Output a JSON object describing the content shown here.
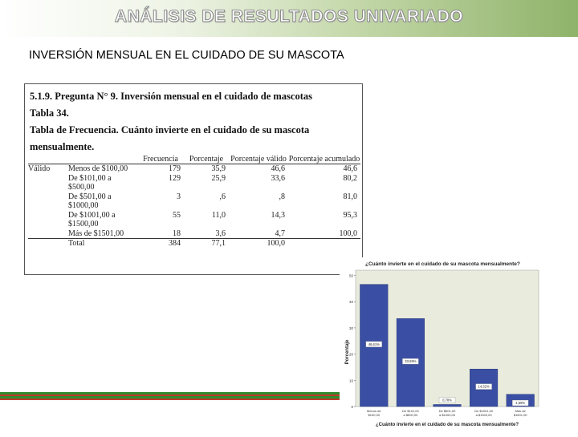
{
  "header": {
    "title": "ANÁLISIS DE RESULTADOS  UNIVARIADO"
  },
  "subtitle": "INVERSIÓN MENSUAL EN EL CUIDADO DE SU MASCOTA",
  "document": {
    "line1": "5.1.9.   Pregunta N° 9. Inversión mensual en el cuidado de mascotas",
    "line2": "Tabla 34.",
    "line3": "Tabla de Frecuencia. Cuánto invierte en el cuidado de su mascota",
    "line4": "mensualmente.",
    "table": {
      "headers": [
        "",
        "",
        "Frecuencia",
        "Porcentaje",
        "Porcentaje válido",
        "Porcentaje acumulado"
      ],
      "group": "Válido",
      "rows": [
        {
          "label": "Menos de $100,00",
          "freq": "179",
          "pct": "35,9",
          "valid": "46,6",
          "cum": "46,6"
        },
        {
          "label": "De $101,00 a $500,00",
          "freq": "129",
          "pct": "25,9",
          "valid": "33,6",
          "cum": "80,2"
        },
        {
          "label": "De $501,00 a $1000,00",
          "freq": "3",
          "pct": ",6",
          "valid": ",8",
          "cum": "81,0"
        },
        {
          "label": "De $1001,00 a $1500,00",
          "freq": "55",
          "pct": "11,0",
          "valid": "14,3",
          "cum": "95,3"
        },
        {
          "label": "Más de $1501,00",
          "freq": "18",
          "pct": "3,6",
          "valid": "4,7",
          "cum": "100,0"
        },
        {
          "label": "Total",
          "freq": "384",
          "pct": "77,1",
          "valid": "100,0",
          "cum": ""
        }
      ]
    }
  },
  "chart_data": {
    "type": "bar",
    "title": "¿Cuánto invierte en el cuidado de su mascota mensualmente?",
    "xlabel": "¿Cuánto invierte en el cuidado de su mascota mensualmente?",
    "ylabel": "Porcentaje",
    "categories": [
      "Menos de $100,00",
      "De $101,00 a $500,00",
      "De $501,00 a $1000,00",
      "De $1001,00 a $1500,00",
      "Más de $1501,00"
    ],
    "values": [
      46.61,
      33.59,
      0.78,
      14.32,
      4.69
    ],
    "data_labels": [
      "46,61%",
      "33,59%",
      "0,78%",
      "14,32%",
      "4,69%"
    ],
    "yticks": [
      "0",
      "10",
      "20",
      "30",
      "40",
      "50"
    ],
    "ylim": [
      0,
      52
    ],
    "grid": false,
    "colors": {
      "bar": "#3a4fa3",
      "plot_bg": "#e9ecdc",
      "outer_bg": "#ffffff"
    }
  },
  "colors": {
    "stripe_green": "#2e8b2e",
    "stripe_red": "#c0392b",
    "title_fill": "#ffffff",
    "title_stroke": "#8a8a8a"
  }
}
